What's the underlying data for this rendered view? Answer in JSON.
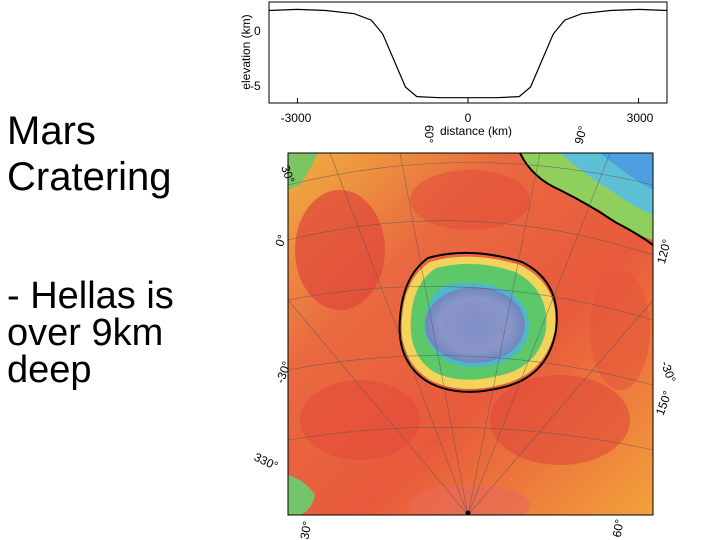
{
  "slide": {
    "title_line1": "Mars",
    "title_line2": "Cratering",
    "bullet_line1": "- Hellas is",
    "bullet_line2": "over 9km",
    "bullet_line3": "deep"
  },
  "profile": {
    "ylabel": "elevation (km)",
    "xlabel": "distance (km)",
    "ytick_0": "0",
    "ytick_m5": "-5",
    "xtick_left": "-3000",
    "xtick_mid": "0",
    "xtick_right": "3000"
  },
  "map": {
    "lat_30_tl": "30°",
    "lat_0_l": "0°",
    "lat_m30_l": "-30°",
    "lat_330": "330°",
    "lon_60": "60°",
    "lon_90": "90°",
    "lon_120": "120°",
    "lat_m30_r": "-30°",
    "lon_150": "150°",
    "lat_30_bl": "30°",
    "lat_60_br": "60°"
  },
  "chart_data": {
    "type": "line",
    "xlabel": "distance (km)",
    "ylabel": "elevation (km)",
    "xlim": [
      -3500,
      3500
    ],
    "ylim": [
      -7.5,
      2
    ],
    "x": [
      -3500,
      -3000,
      -2500,
      -2000,
      -1700,
      -1500,
      -1300,
      -1100,
      -900,
      -500,
      0,
      500,
      900,
      1100,
      1300,
      1500,
      1700,
      2000,
      2500,
      3000,
      3500
    ],
    "series": [
      {
        "values": [
          1.2,
          1.3,
          1.2,
          0.9,
          0.3,
          -1.0,
          -3.5,
          -6.0,
          -6.9,
          -7.0,
          -7.0,
          -7.0,
          -6.9,
          -6.0,
          -3.5,
          -1.0,
          0.3,
          0.9,
          1.2,
          1.3,
          1.2
        ]
      }
    ]
  }
}
